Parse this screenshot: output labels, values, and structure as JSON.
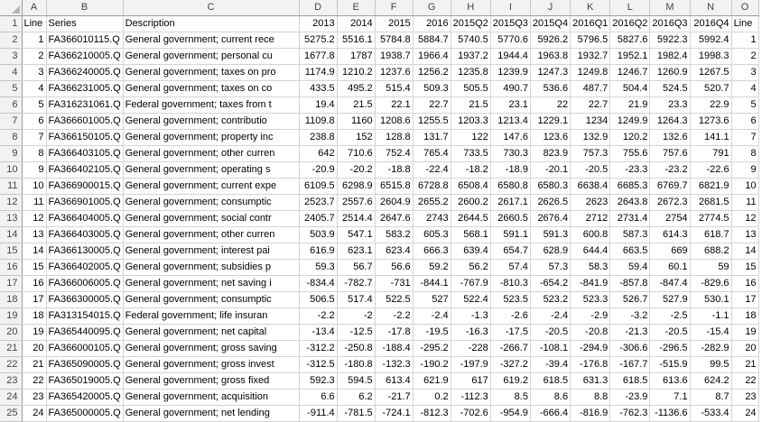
{
  "columns": [
    "A",
    "B",
    "C",
    "D",
    "E",
    "F",
    "G",
    "H",
    "I",
    "J",
    "K",
    "L",
    "M",
    "N",
    "O"
  ],
  "rows": [
    {
      "num": "1",
      "cells": [
        "Line",
        "Series",
        "Description",
        "2013",
        "2014",
        "2015",
        "2016",
        "2015Q2",
        "2015Q3",
        "2015Q4",
        "2016Q1",
        "2016Q2",
        "2016Q3",
        "2016Q4",
        "Line"
      ]
    },
    {
      "num": "2",
      "cells": [
        "1",
        "FA366010115.Q",
        "General government; current rece",
        "5275.2",
        "5516.1",
        "5784.8",
        "5884.7",
        "5740.5",
        "5770.6",
        "5926.2",
        "5796.5",
        "5827.6",
        "5922.3",
        "5992.4",
        "1"
      ]
    },
    {
      "num": "3",
      "cells": [
        "2",
        "FA366210005.Q",
        "General government; personal cu",
        "1677.8",
        "1787",
        "1938.7",
        "1966.4",
        "1937.2",
        "1944.4",
        "1963.8",
        "1932.7",
        "1952.1",
        "1982.4",
        "1998.3",
        "2"
      ]
    },
    {
      "num": "4",
      "cells": [
        "3",
        "FA366240005.Q",
        "General government; taxes on pro",
        "1174.9",
        "1210.2",
        "1237.6",
        "1256.2",
        "1235.8",
        "1239.9",
        "1247.3",
        "1249.8",
        "1246.7",
        "1260.9",
        "1267.5",
        "3"
      ]
    },
    {
      "num": "5",
      "cells": [
        "4",
        "FA366231005.Q",
        "General government; taxes on co",
        "433.5",
        "495.2",
        "515.4",
        "509.3",
        "505.5",
        "490.7",
        "536.6",
        "487.7",
        "504.4",
        "524.5",
        "520.7",
        "4"
      ]
    },
    {
      "num": "6",
      "cells": [
        "5",
        "FA316231061.Q",
        "Federal government; taxes from t",
        "19.4",
        "21.5",
        "22.1",
        "22.7",
        "21.5",
        "23.1",
        "22",
        "22.7",
        "21.9",
        "23.3",
        "22.9",
        "5"
      ]
    },
    {
      "num": "7",
      "cells": [
        "6",
        "FA366601005.Q",
        "General government; contributio",
        "1109.8",
        "1160",
        "1208.6",
        "1255.5",
        "1203.3",
        "1213.4",
        "1229.1",
        "1234",
        "1249.9",
        "1264.3",
        "1273.6",
        "6"
      ]
    },
    {
      "num": "8",
      "cells": [
        "7",
        "FA366150105.Q",
        "General government; property inc",
        "238.8",
        "152",
        "128.8",
        "131.7",
        "122",
        "147.6",
        "123.6",
        "132.9",
        "120.2",
        "132.6",
        "141.1",
        "7"
      ]
    },
    {
      "num": "9",
      "cells": [
        "8",
        "FA366403105.Q",
        "General government; other curren",
        "642",
        "710.6",
        "752.4",
        "765.4",
        "733.5",
        "730.3",
        "823.9",
        "757.3",
        "755.6",
        "757.6",
        "791",
        "8"
      ]
    },
    {
      "num": "10",
      "cells": [
        "9",
        "FA366402105.Q",
        "General government; operating s",
        "-20.9",
        "-20.2",
        "-18.8",
        "-22.4",
        "-18.2",
        "-18.9",
        "-20.1",
        "-20.5",
        "-23.3",
        "-23.2",
        "-22.6",
        "9"
      ]
    },
    {
      "num": "11",
      "cells": [
        "10",
        "FA366900015.Q",
        "General government; current expe",
        "6109.5",
        "6298.9",
        "6515.8",
        "6728.8",
        "6508.4",
        "6580.8",
        "6580.3",
        "6638.4",
        "6685.3",
        "6769.7",
        "6821.9",
        "10"
      ]
    },
    {
      "num": "12",
      "cells": [
        "11",
        "FA366901005.Q",
        "General government; consumptic",
        "2523.7",
        "2557.6",
        "2604.9",
        "2655.2",
        "2600.2",
        "2617.1",
        "2626.5",
        "2623",
        "2643.8",
        "2672.3",
        "2681.5",
        "11"
      ]
    },
    {
      "num": "13",
      "cells": [
        "12",
        "FA366404005.Q",
        "General government; social contr",
        "2405.7",
        "2514.4",
        "2647.6",
        "2743",
        "2644.5",
        "2660.5",
        "2676.4",
        "2712",
        "2731.4",
        "2754",
        "2774.5",
        "12"
      ]
    },
    {
      "num": "14",
      "cells": [
        "13",
        "FA366403005.Q",
        "General government; other curren",
        "503.9",
        "547.1",
        "583.2",
        "605.3",
        "568.1",
        "591.1",
        "591.3",
        "600.8",
        "587.3",
        "614.3",
        "618.7",
        "13"
      ]
    },
    {
      "num": "15",
      "cells": [
        "14",
        "FA366130005.Q",
        "General government; interest pai",
        "616.9",
        "623.1",
        "623.4",
        "666.3",
        "639.4",
        "654.7",
        "628.9",
        "644.4",
        "663.5",
        "669",
        "688.2",
        "14"
      ]
    },
    {
      "num": "16",
      "cells": [
        "15",
        "FA366402005.Q",
        "General government; subsidies p",
        "59.3",
        "56.7",
        "56.6",
        "59.2",
        "56.2",
        "57.4",
        "57.3",
        "58.3",
        "59.4",
        "60.1",
        "59",
        "15"
      ]
    },
    {
      "num": "17",
      "cells": [
        "16",
        "FA366006005.Q",
        "General government; net saving i",
        "-834.4",
        "-782.7",
        "-731",
        "-844.1",
        "-767.9",
        "-810.3",
        "-654.2",
        "-841.9",
        "-857.8",
        "-847.4",
        "-829.6",
        "16"
      ]
    },
    {
      "num": "18",
      "cells": [
        "17",
        "FA366300005.Q",
        "General government; consumptic",
        "506.5",
        "517.4",
        "522.5",
        "527",
        "522.4",
        "523.5",
        "523.2",
        "523.3",
        "526.7",
        "527.9",
        "530.1",
        "17"
      ]
    },
    {
      "num": "19",
      "cells": [
        "18",
        "FA313154015.Q",
        "Federal government; life insuran",
        "-2.2",
        "-2",
        "-2.2",
        "-2.4",
        "-1.3",
        "-2.6",
        "-2.4",
        "-2.9",
        "-3.2",
        "-2.5",
        "-1.1",
        "18"
      ]
    },
    {
      "num": "20",
      "cells": [
        "19",
        "FA365440095.Q",
        "General government; net capital",
        "-13.4",
        "-12.5",
        "-17.8",
        "-19.5",
        "-16.3",
        "-17.5",
        "-20.5",
        "-20.8",
        "-21.3",
        "-20.5",
        "-15.4",
        "19"
      ]
    },
    {
      "num": "21",
      "cells": [
        "20",
        "FA366000105.Q",
        "General government; gross saving",
        "-312.2",
        "-250.8",
        "-188.4",
        "-295.2",
        "-228",
        "-266.7",
        "-108.1",
        "-294.9",
        "-306.6",
        "-296.5",
        "-282.9",
        "20"
      ]
    },
    {
      "num": "22",
      "cells": [
        "21",
        "FA365090005.Q",
        "General government; gross invest",
        "-312.5",
        "-180.8",
        "-132.3",
        "-190.2",
        "-197.9",
        "-327.2",
        "-39.4",
        "-176.8",
        "-167.7",
        "-515.9",
        "99.5",
        "21"
      ]
    },
    {
      "num": "23",
      "cells": [
        "22",
        "FA365019005.Q",
        "General government; gross fixed",
        "592.3",
        "594.5",
        "613.4",
        "621.9",
        "617",
        "619.2",
        "618.5",
        "631.3",
        "618.5",
        "613.6",
        "624.2",
        "22"
      ]
    },
    {
      "num": "24",
      "cells": [
        "23",
        "FA365420005.Q",
        "General government; acquisition",
        "6.6",
        "6.2",
        "-21.7",
        "0.2",
        "-112.3",
        "8.5",
        "8.6",
        "8.8",
        "-23.9",
        "7.1",
        "8.7",
        "23"
      ]
    },
    {
      "num": "25",
      "cells": [
        "24",
        "FA365000005.Q",
        "General government; net lending",
        "-911.4",
        "-781.5",
        "-724.1",
        "-812.3",
        "-702.6",
        "-954.9",
        "-666.4",
        "-816.9",
        "-762.3",
        "-1136.6",
        "-533.4",
        "24"
      ]
    }
  ]
}
